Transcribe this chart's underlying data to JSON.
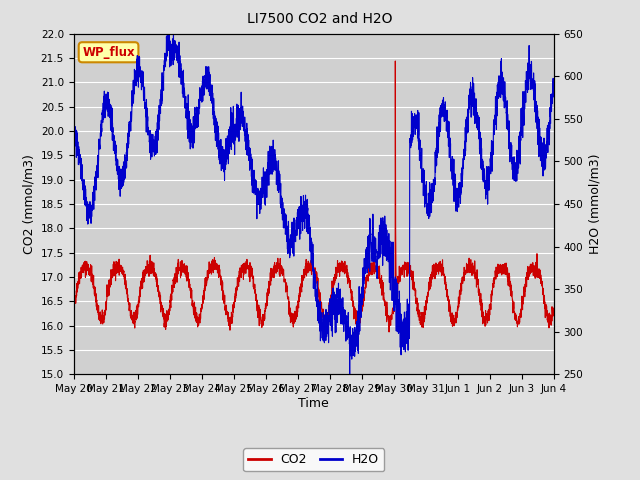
{
  "title": "LI7500 CO2 and H2O",
  "xlabel": "Time",
  "ylabel_left": "CO2 (mmol/m3)",
  "ylabel_right": "H2O (mmol/m3)",
  "ylim_left": [
    15.0,
    22.0
  ],
  "ylim_right": [
    250,
    650
  ],
  "co2_color": "#cc0000",
  "h2o_color": "#0000cc",
  "background_color": "#e0e0e0",
  "plot_bg_color": "#d0d0d0",
  "annotation_text": "WP_flux",
  "annotation_bg": "#ffffaa",
  "annotation_border": "#cc8800",
  "annotation_text_color": "#cc0000",
  "legend_co2": "CO2",
  "legend_h2o": "H2O",
  "x_tick_labels": [
    "May 20",
    "May 21",
    "May 22",
    "May 23",
    "May 24",
    "May 25",
    "May 26",
    "May 27",
    "May 28",
    "May 29",
    "May 30",
    "May 31",
    "Jun 1",
    "Jun 2",
    "Jun 3",
    "Jun 4"
  ],
  "yticks_left": [
    15.0,
    15.5,
    16.0,
    16.5,
    17.0,
    17.5,
    18.0,
    18.5,
    19.0,
    19.5,
    20.0,
    20.5,
    21.0,
    21.5,
    22.0
  ],
  "yticks_right": [
    250,
    300,
    350,
    400,
    450,
    500,
    550,
    600,
    650
  ],
  "n_points": 3000,
  "seed": 42
}
